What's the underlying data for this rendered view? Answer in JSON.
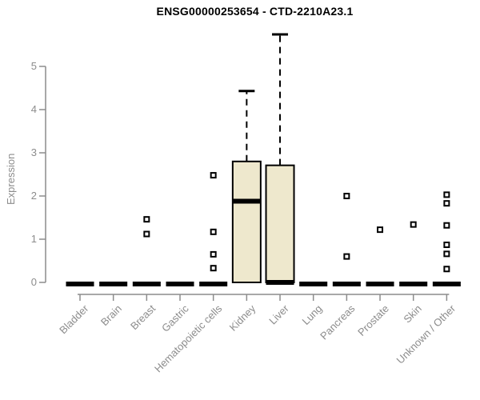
{
  "title": "ENSG00000253654 - CTD-2210A23.1",
  "ylabel": "Expression",
  "colors": {
    "box_fill": "#EEE8CD",
    "box_border": "#000000",
    "median": "#000000",
    "whisker": "#000000",
    "outlier_stroke": "#000000",
    "outlier_fill": "#FFFFFF",
    "axis": "#8C8C8C",
    "tick_text": "#8C8C8C",
    "title_text": "#000000",
    "background": "#FFFFFF"
  },
  "chart_data": {
    "type": "boxplot",
    "title": "ENSG00000253654 - CTD-2210A23.1",
    "xlabel": "",
    "ylabel": "Expression",
    "ylim": [
      0,
      5.8
    ],
    "yticks": [
      0,
      1,
      2,
      3,
      4,
      5
    ],
    "grid": false,
    "legend": false,
    "categories": [
      "Bladder",
      "Brain",
      "Breast",
      "Gastric",
      "Hematopoietic cells",
      "Kidney",
      "Liver",
      "Lung",
      "Pancreas",
      "Prostate",
      "Skin",
      "Unknown / Other"
    ],
    "series": [
      {
        "category": "Bladder",
        "whisker_low": 0,
        "q1": 0,
        "median": 0,
        "q3": 0,
        "whisker_high": 0,
        "outliers": []
      },
      {
        "category": "Brain",
        "whisker_low": 0,
        "q1": 0,
        "median": 0,
        "q3": 0,
        "whisker_high": 0,
        "outliers": []
      },
      {
        "category": "Breast",
        "whisker_low": 0,
        "q1": 0,
        "median": 0,
        "q3": 0,
        "whisker_high": 0,
        "outliers": [
          1.46,
          1.12
        ]
      },
      {
        "category": "Gastric",
        "whisker_low": 0,
        "q1": 0,
        "median": 0,
        "q3": 0,
        "whisker_high": 0,
        "outliers": []
      },
      {
        "category": "Hematopoietic cells",
        "whisker_low": 0,
        "q1": 0,
        "median": 0,
        "q3": 0,
        "whisker_high": 0,
        "outliers": [
          2.48,
          1.17,
          0.65,
          0.33
        ]
      },
      {
        "category": "Kidney",
        "whisker_low": 0,
        "q1": 0,
        "median": 1.88,
        "q3": 2.8,
        "whisker_high": 4.43,
        "outliers": []
      },
      {
        "category": "Liver",
        "whisker_low": 0,
        "q1": 0,
        "median": 0,
        "q3": 2.71,
        "whisker_high": 5.74,
        "outliers": []
      },
      {
        "category": "Lung",
        "whisker_low": 0,
        "q1": 0,
        "median": 0,
        "q3": 0,
        "whisker_high": 0,
        "outliers": []
      },
      {
        "category": "Pancreas",
        "whisker_low": 0,
        "q1": 0,
        "median": 0,
        "q3": 0,
        "whisker_high": 0,
        "outliers": [
          2.0,
          0.6
        ]
      },
      {
        "category": "Prostate",
        "whisker_low": 0,
        "q1": 0,
        "median": 0,
        "q3": 0,
        "whisker_high": 0,
        "outliers": [
          1.22
        ]
      },
      {
        "category": "Skin",
        "whisker_low": 0,
        "q1": 0,
        "median": 0,
        "q3": 0,
        "whisker_high": 0,
        "outliers": [
          1.34
        ]
      },
      {
        "category": "Unknown / Other",
        "whisker_low": 0,
        "q1": 0,
        "median": 0,
        "q3": 0,
        "whisker_high": 0,
        "outliers": [
          2.03,
          1.83,
          1.32,
          0.87,
          0.66,
          0.31
        ]
      }
    ]
  }
}
